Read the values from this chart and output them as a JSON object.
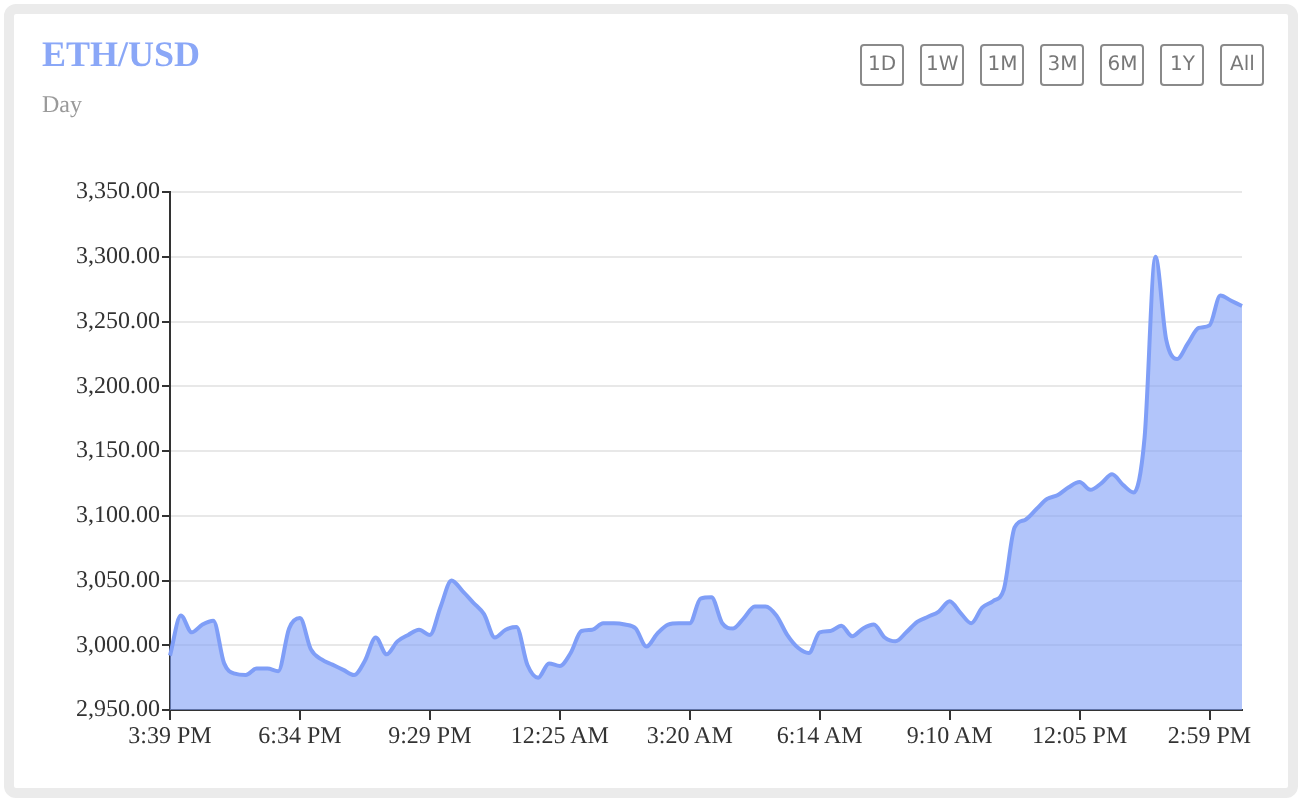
{
  "chart_data": {
    "type": "area",
    "title": "ETH/USD",
    "subtitle": "Day",
    "annotations": [
      "1D",
      "1W",
      "1M",
      "3M",
      "6M",
      "1Y",
      "All"
    ],
    "color": "#7f9ef7",
    "grid": "y",
    "categories": [
      "3:39 PM",
      null,
      null,
      null,
      null,
      null,
      null,
      null,
      null,
      null,
      null,
      null,
      "6:34 PM",
      null,
      null,
      null,
      null,
      null,
      null,
      null,
      null,
      null,
      null,
      null,
      "9:29 PM",
      null,
      null,
      null,
      null,
      null,
      null,
      null,
      null,
      null,
      null,
      null,
      "12:25 AM",
      null,
      null,
      null,
      null,
      null,
      null,
      null,
      null,
      null,
      null,
      null,
      "3:20 AM",
      null,
      null,
      null,
      null,
      null,
      null,
      null,
      null,
      null,
      null,
      null,
      "6:14 AM",
      null,
      null,
      null,
      null,
      null,
      null,
      null,
      null,
      null,
      null,
      null,
      "9:10 AM",
      null,
      null,
      null,
      null,
      null,
      null,
      null,
      null,
      null,
      null,
      null,
      "12:05 PM",
      null,
      null,
      null,
      null,
      null,
      null,
      null,
      null,
      null,
      null,
      null,
      "2:59 PM",
      null,
      null,
      null
    ],
    "ylim": [
      2950,
      3350
    ],
    "yticks": [
      {
        "value": 2950,
        "label": "2,950.00"
      },
      {
        "value": 3000,
        "label": "3,000.00"
      },
      {
        "value": 3050,
        "label": "3,050.00"
      },
      {
        "value": 3100,
        "label": "3,100.00"
      },
      {
        "value": 3150,
        "label": "3,150.00"
      },
      {
        "value": 3200,
        "label": "3,200.00"
      },
      {
        "value": 3250,
        "label": "3,250.00"
      },
      {
        "value": 3300,
        "label": "3,300.00"
      },
      {
        "value": 3350,
        "label": "3,350.00"
      }
    ],
    "values": [
      2992,
      3023,
      3010,
      3016,
      3019,
      2986,
      2978,
      2977,
      2982,
      2982,
      2980,
      3013,
      3021,
      2997,
      2989,
      2985,
      2981,
      2977,
      2988,
      3006,
      2993,
      3003,
      3008,
      3012,
      3008,
      3030,
      3050,
      3042,
      3033,
      3024,
      3006,
      3012,
      3014,
      2985,
      2975,
      2986,
      2984,
      2994,
      3011,
      3012,
      3017,
      3017,
      3016,
      3013,
      2999,
      3009,
      3016,
      3017,
      3017,
      3036,
      3037,
      3017,
      3013,
      3021,
      3030,
      3030,
      3023,
      3008,
      2998,
      2994,
      3010,
      3011,
      3015,
      3007,
      3013,
      3016,
      3006,
      3003,
      3010,
      3018,
      3022,
      3026,
      3034,
      3025,
      3017,
      3029,
      3034,
      3043,
      3091,
      3097,
      3105,
      3113,
      3116,
      3122,
      3126,
      3120,
      3125,
      3132,
      3124,
      3118,
      3160,
      3300,
      3236,
      3221,
      3233,
      3245,
      3247,
      3270,
      3266,
      3262
    ]
  }
}
